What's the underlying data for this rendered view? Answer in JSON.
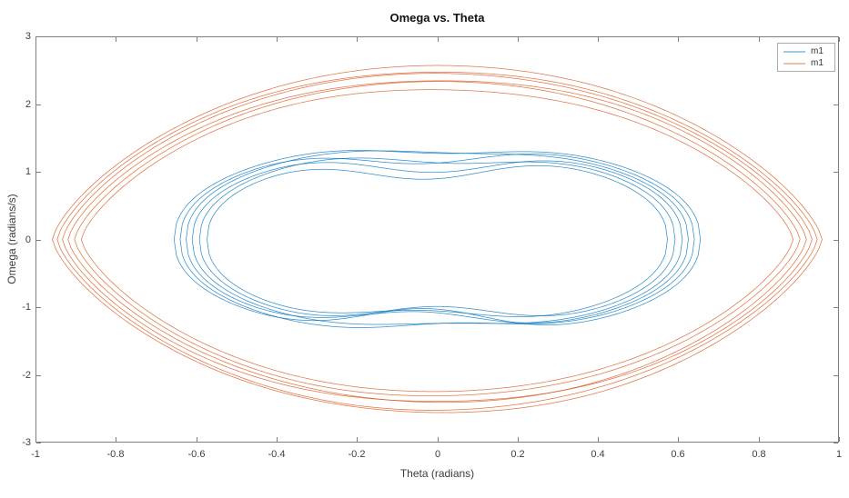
{
  "figure": {
    "title": "Omega vs. Theta",
    "background_color": "#ffffff"
  },
  "chart_data": {
    "type": "line",
    "title": "Omega vs. Theta",
    "xlabel": "Theta (radians)",
    "ylabel": "Omega (radians/s)",
    "xlim": [
      -1,
      1
    ],
    "ylim": [
      -3,
      3
    ],
    "x_ticks": [
      -1,
      -0.8,
      -0.6,
      -0.4,
      -0.2,
      0,
      0.2,
      0.4,
      0.6,
      0.8,
      1
    ],
    "x_tick_labels": [
      "-1",
      "-0.8",
      "-0.6",
      "-0.4",
      "-0.2",
      "0",
      "0.2",
      "0.4",
      "0.6",
      "0.8",
      "1"
    ],
    "y_ticks": [
      -3,
      -2,
      -1,
      0,
      1,
      2,
      3
    ],
    "y_tick_labels": [
      "-3",
      "-2",
      "-1",
      "0",
      "1",
      "2",
      "3"
    ],
    "grid": false,
    "box": true,
    "tick_direction": "in",
    "axis_color": "#7f7f7f",
    "tick_label_color": "#404040",
    "title_color": "#111111",
    "legend": {
      "position": "top-right",
      "entries": [
        {
          "label": "m1",
          "color": "#0072BD"
        },
        {
          "label": "m1",
          "color": "#D95319"
        }
      ]
    },
    "series": [
      {
        "name": "m1",
        "color": "#0072BD",
        "shape": "inner-peanut-limit-cycle",
        "cycles_visible": 6,
        "theta_range": [
          -0.655,
          0.655
        ],
        "omega_range": [
          -1.31,
          1.31
        ],
        "omega_at_theta0_band": [
          0.9,
          1.29
        ],
        "exponent": 0.45,
        "dip_sigma": 0.17,
        "wobble_amp": 0.005,
        "loops": [
          {
            "A": 0.655,
            "B": 1.46,
            "dipTop": 0.13,
            "offTop": 0.02,
            "dipBot": 0.3,
            "offBot": -0.03
          },
          {
            "A": 0.64,
            "B": 1.43,
            "dipTop": 0.22,
            "offTop": -0.04,
            "dipBot": 0.14,
            "offBot": 0.04
          },
          {
            "A": 0.625,
            "B": 1.41,
            "dipTop": 0.09,
            "offTop": 0.05,
            "dipBot": 0.24,
            "offBot": -0.05
          },
          {
            "A": 0.61,
            "B": 1.38,
            "dipTop": 0.28,
            "offTop": -0.01,
            "dipBot": 0.1,
            "offBot": 0.02
          },
          {
            "A": 0.592,
            "B": 1.35,
            "dipTop": 0.17,
            "offTop": 0.04,
            "dipBot": 0.27,
            "offBot": 0.0
          },
          {
            "A": 0.573,
            "B": 1.31,
            "dipTop": 0.32,
            "offTop": -0.03,
            "dipBot": 0.2,
            "offBot": -0.04
          }
        ]
      },
      {
        "name": "m1",
        "color": "#D95319",
        "shape": "outer-lens-limit-cycle",
        "cycles_visible": 6,
        "theta_range": [
          -0.958,
          0.958
        ],
        "omega_range": [
          -2.6,
          2.6
        ],
        "omega_at_theta0_band": [
          2.25,
          2.58
        ],
        "exponent": 0.72,
        "dip_sigma": 0.3,
        "wobble_amp": 0.005,
        "loops": [
          {
            "A": 0.958,
            "B": 2.6,
            "dipTop": 0.015,
            "offTop": 0.05,
            "dipBot": 0.02,
            "offBot": -0.05
          },
          {
            "A": 0.946,
            "B": 2.54,
            "dipTop": 0.03,
            "offTop": -0.06,
            "dipBot": 0.01,
            "offBot": 0.06
          },
          {
            "A": 0.933,
            "B": 2.49,
            "dipTop": 0.01,
            "offTop": 0.08,
            "dipBot": 0.035,
            "offBot": 0.0
          },
          {
            "A": 0.919,
            "B": 2.44,
            "dipTop": 0.04,
            "offTop": 0.0,
            "dipBot": 0.015,
            "offBot": -0.07
          },
          {
            "A": 0.903,
            "B": 2.37,
            "dipTop": 0.02,
            "offTop": -0.05,
            "dipBot": 0.03,
            "offBot": 0.05
          },
          {
            "A": 0.886,
            "B": 2.3,
            "dipTop": 0.035,
            "offTop": 0.03,
            "dipBot": 0.02,
            "offBot": 0.02
          }
        ]
      }
    ]
  }
}
